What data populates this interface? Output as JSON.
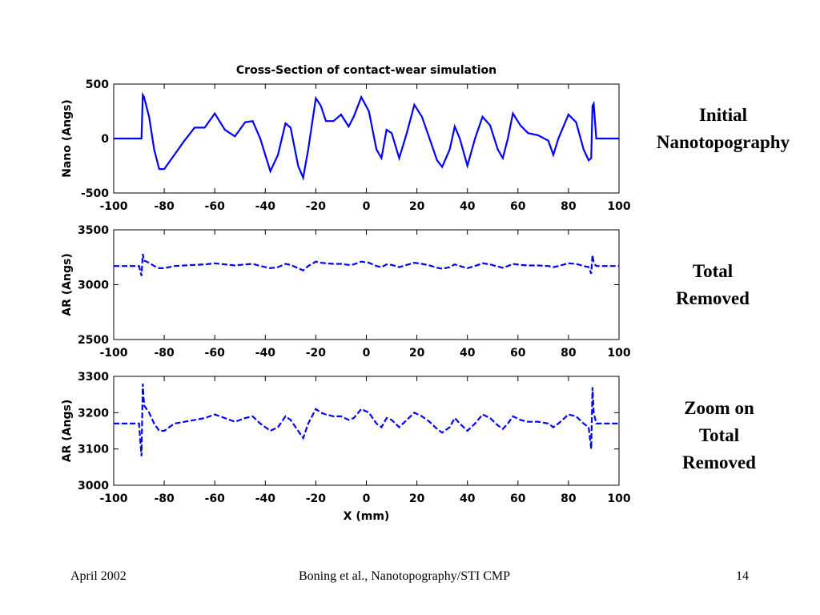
{
  "chart_data": [
    {
      "type": "line",
      "title": "Cross-Section of contact-wear simulation",
      "ylabel": "Nano (Angs)",
      "xlim": [
        -100,
        100
      ],
      "xticks": [
        -100,
        -80,
        -60,
        -40,
        -20,
        0,
        20,
        40,
        60,
        80,
        100
      ],
      "ylim": [
        -500,
        500
      ],
      "yticks": [
        -500,
        0,
        500
      ],
      "line_style": "solid",
      "x": [
        -100,
        -90,
        -89,
        -88.5,
        -88,
        -86,
        -84,
        -82,
        -80,
        -76,
        -72,
        -68,
        -64,
        -60,
        -56,
        -52,
        -48,
        -45,
        -42,
        -38,
        -35,
        -32,
        -30,
        -27,
        -25,
        -23,
        -20,
        -18,
        -16,
        -13,
        -10,
        -7,
        -5,
        -2,
        1,
        4,
        6,
        8,
        10,
        13,
        16,
        19,
        22,
        25,
        28,
        30,
        33,
        35,
        37,
        40,
        43,
        46,
        49,
        52,
        54,
        56,
        58,
        61,
        64,
        68,
        72,
        74,
        76,
        80,
        83,
        86,
        88,
        89,
        89.5,
        90,
        91,
        100
      ],
      "series": [
        {
          "color": "#0000ff",
          "values": [
            0,
            0,
            0,
            400,
            380,
            200,
            -100,
            -280,
            -280,
            -150,
            -20,
            100,
            100,
            230,
            80,
            20,
            150,
            160,
            0,
            -300,
            -150,
            140,
            100,
            -250,
            -360,
            -100,
            370,
            300,
            160,
            160,
            220,
            110,
            200,
            380,
            250,
            -100,
            -180,
            80,
            50,
            -180,
            50,
            310,
            200,
            0,
            -200,
            -260,
            -100,
            110,
            0,
            -250,
            0,
            200,
            120,
            -100,
            -180,
            0,
            230,
            120,
            50,
            30,
            -20,
            -150,
            0,
            220,
            150,
            -100,
            -200,
            -180,
            300,
            320,
            0,
            0
          ]
        }
      ]
    },
    {
      "type": "line",
      "ylabel": "AR (Angs)",
      "xlim": [
        -100,
        100
      ],
      "xticks": [
        -100,
        -80,
        -60,
        -40,
        -20,
        0,
        20,
        40,
        60,
        80,
        100
      ],
      "ylim": [
        2500,
        3500
      ],
      "yticks": [
        2500,
        3000,
        3500
      ],
      "line_style": "dashed",
      "x": [
        -100,
        -90,
        -89,
        -88.5,
        -88,
        -86,
        -84,
        -82,
        -80,
        -76,
        -72,
        -68,
        -64,
        -60,
        -56,
        -52,
        -48,
        -45,
        -42,
        -38,
        -35,
        -32,
        -30,
        -27,
        -25,
        -23,
        -20,
        -18,
        -16,
        -13,
        -10,
        -7,
        -5,
        -2,
        1,
        4,
        6,
        8,
        10,
        13,
        16,
        19,
        22,
        25,
        28,
        30,
        33,
        35,
        37,
        40,
        43,
        46,
        49,
        52,
        54,
        56,
        58,
        61,
        64,
        68,
        72,
        74,
        76,
        80,
        83,
        86,
        88,
        89,
        89.5,
        90,
        91,
        100
      ],
      "series": [
        {
          "color": "#0000ff",
          "values": [
            3170,
            3170,
            3080,
            3280,
            3220,
            3200,
            3170,
            3150,
            3150,
            3170,
            3175,
            3180,
            3185,
            3195,
            3185,
            3175,
            3185,
            3190,
            3170,
            3150,
            3160,
            3190,
            3180,
            3150,
            3130,
            3170,
            3210,
            3200,
            3195,
            3190,
            3190,
            3180,
            3185,
            3210,
            3200,
            3170,
            3160,
            3185,
            3180,
            3160,
            3180,
            3200,
            3190,
            3175,
            3155,
            3145,
            3160,
            3185,
            3170,
            3150,
            3170,
            3195,
            3185,
            3165,
            3155,
            3170,
            3190,
            3180,
            3175,
            3175,
            3170,
            3160,
            3170,
            3195,
            3190,
            3170,
            3160,
            3100,
            3270,
            3200,
            3170,
            3170
          ]
        }
      ]
    },
    {
      "type": "line",
      "ylabel": "AR (Angs)",
      "xlabel": "X (mm)",
      "xlim": [
        -100,
        100
      ],
      "xticks": [
        -100,
        -80,
        -60,
        -40,
        -20,
        0,
        20,
        40,
        60,
        80,
        100
      ],
      "ylim": [
        3000,
        3300
      ],
      "yticks": [
        3000,
        3100,
        3200,
        3300
      ],
      "line_style": "dashed",
      "x": [
        -100,
        -90,
        -89,
        -88.5,
        -88,
        -86,
        -84,
        -82,
        -80,
        -76,
        -72,
        -68,
        -64,
        -60,
        -56,
        -52,
        -48,
        -45,
        -42,
        -38,
        -35,
        -32,
        -30,
        -27,
        -25,
        -23,
        -20,
        -18,
        -16,
        -13,
        -10,
        -7,
        -5,
        -2,
        1,
        4,
        6,
        8,
        10,
        13,
        16,
        19,
        22,
        25,
        28,
        30,
        33,
        35,
        37,
        40,
        43,
        46,
        49,
        52,
        54,
        56,
        58,
        61,
        64,
        68,
        72,
        74,
        76,
        80,
        83,
        86,
        88,
        89,
        89.5,
        90,
        91,
        100
      ],
      "series": [
        {
          "color": "#0000ff",
          "values": [
            3170,
            3170,
            3080,
            3280,
            3220,
            3200,
            3170,
            3150,
            3150,
            3170,
            3175,
            3180,
            3185,
            3195,
            3185,
            3175,
            3185,
            3190,
            3170,
            3150,
            3160,
            3190,
            3180,
            3150,
            3130,
            3170,
            3210,
            3200,
            3195,
            3190,
            3190,
            3180,
            3185,
            3210,
            3200,
            3170,
            3160,
            3185,
            3180,
            3160,
            3180,
            3200,
            3190,
            3175,
            3155,
            3145,
            3160,
            3185,
            3170,
            3150,
            3170,
            3195,
            3185,
            3165,
            3155,
            3170,
            3190,
            3180,
            3175,
            3175,
            3170,
            3160,
            3170,
            3195,
            3190,
            3170,
            3160,
            3100,
            3270,
            3200,
            3170,
            3170
          ]
        }
      ]
    }
  ],
  "side_labels": [
    [
      "Initial",
      "Nanotopography"
    ],
    [
      "Total",
      "Removed"
    ],
    [
      "Zoom on",
      "Total",
      "Removed"
    ]
  ],
  "footer": {
    "left": "April 2002",
    "center": "Boning et al., Nanotopography/STI CMP",
    "right": "14"
  }
}
